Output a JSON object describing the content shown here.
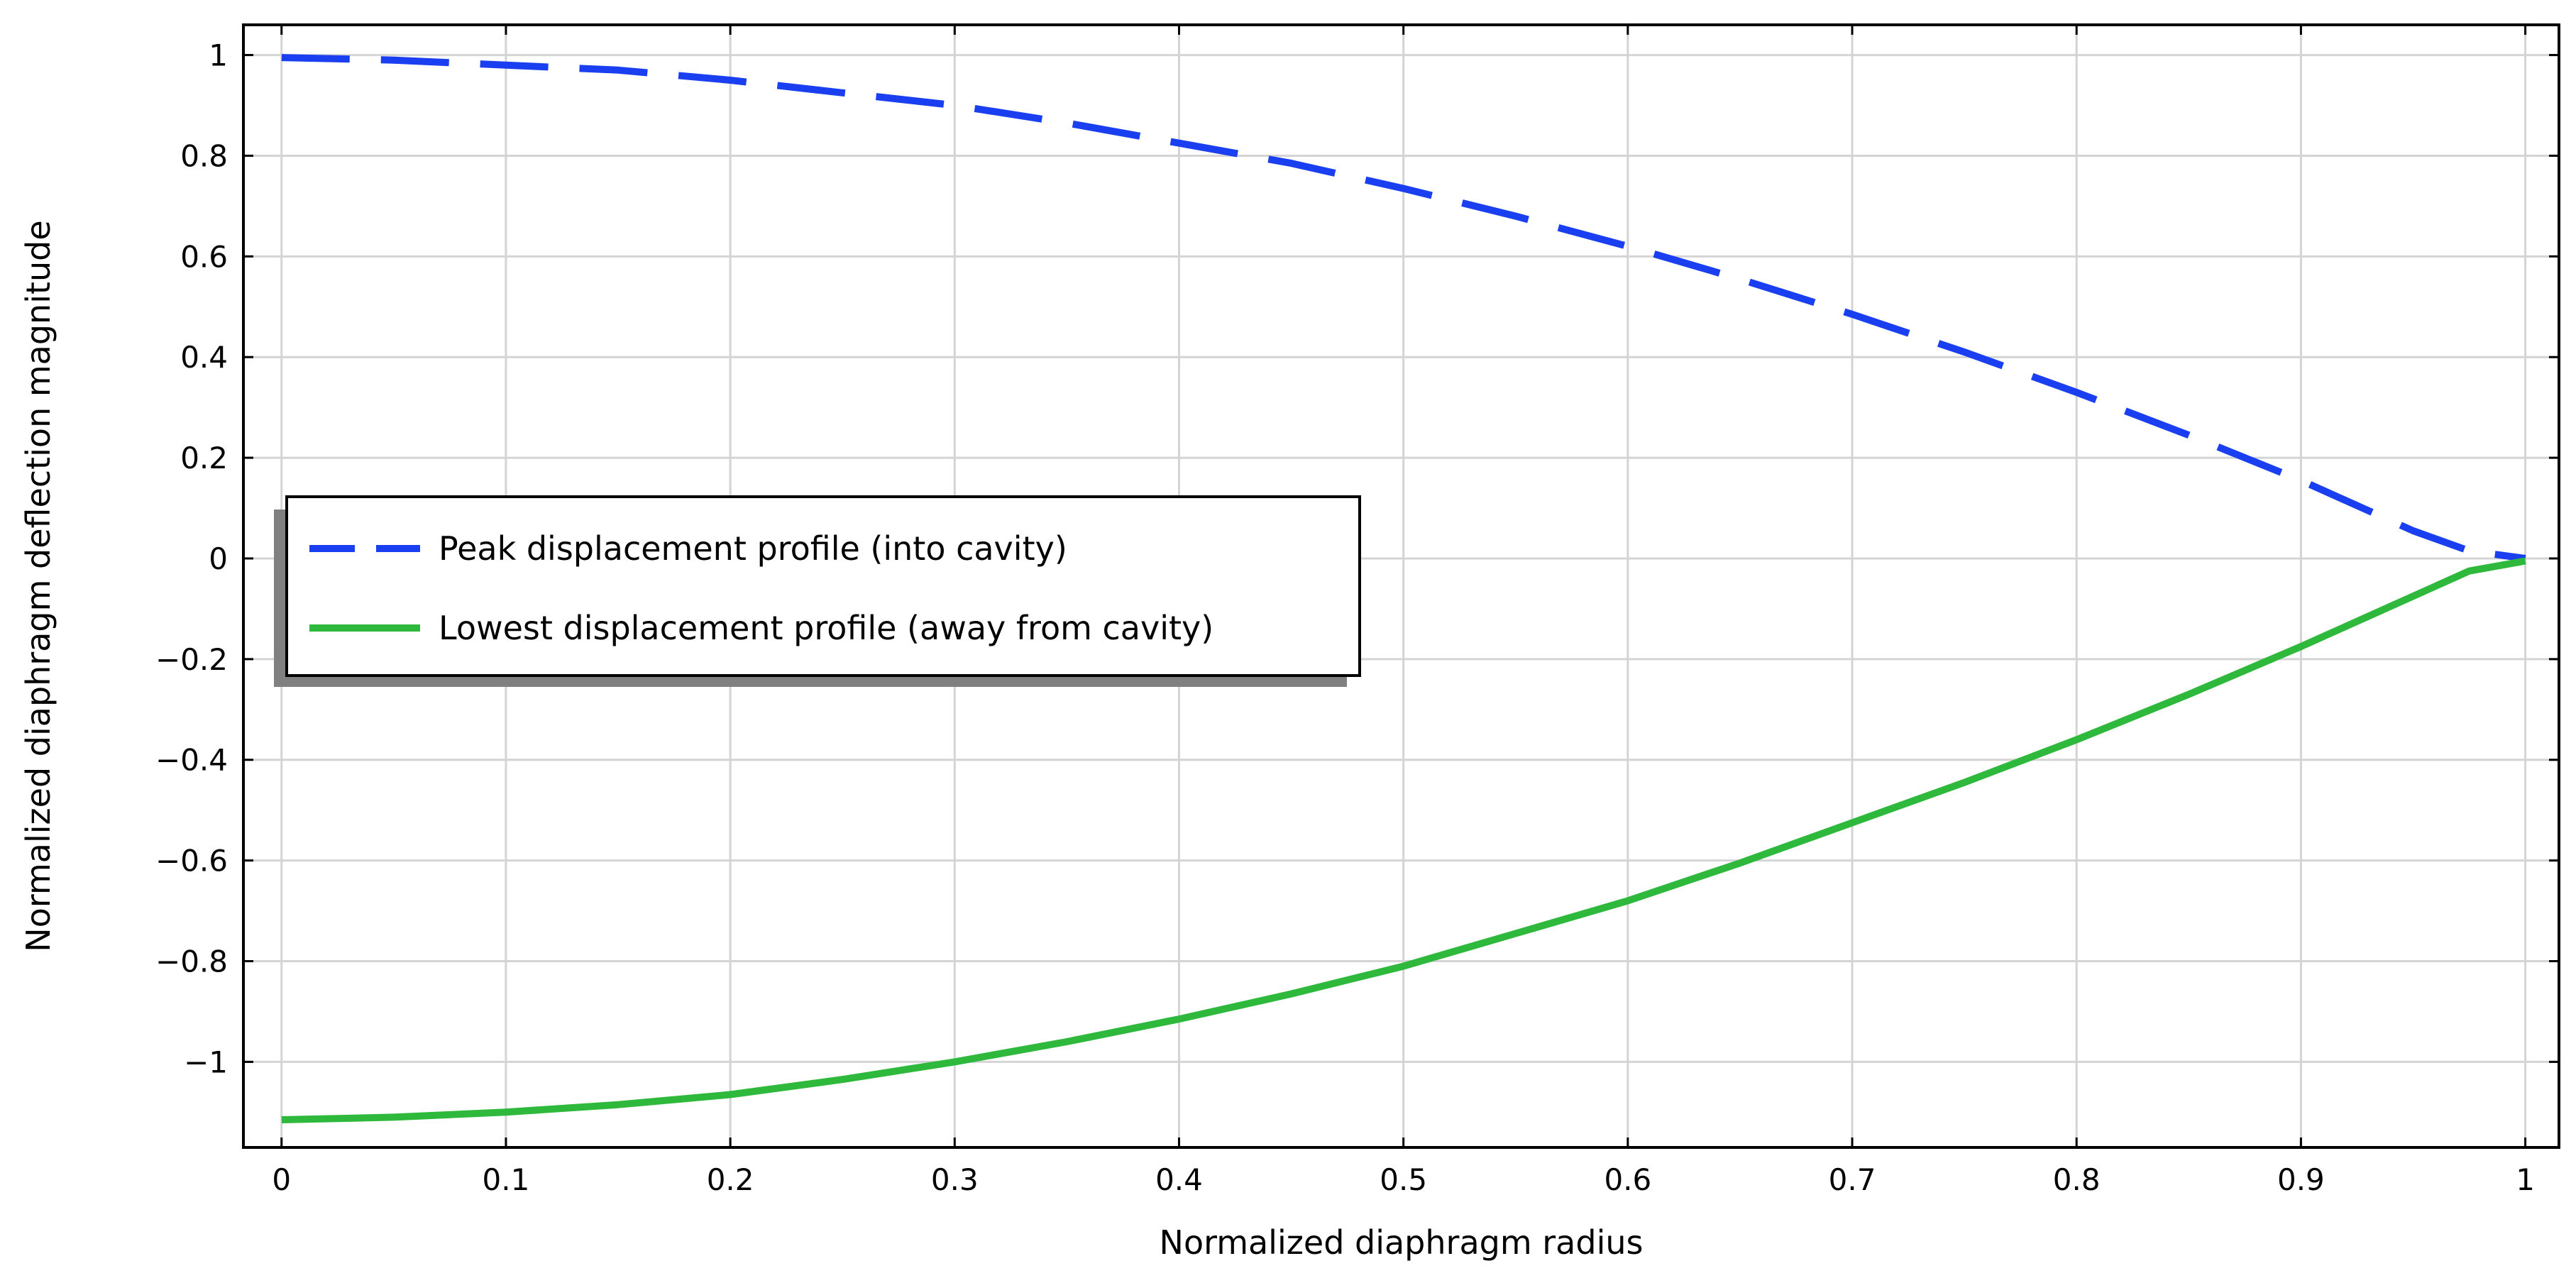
{
  "chart_data": {
    "type": "line",
    "xlabel": "Normalized diaphragm radius",
    "ylabel": "Normalized diaphragm deflection magnitude",
    "xlim": [
      -0.017,
      1.015
    ],
    "ylim": [
      -1.17,
      1.06
    ],
    "xticks": [
      0,
      0.1,
      0.2,
      0.3,
      0.4,
      0.5,
      0.6,
      0.7,
      0.8,
      0.9,
      1
    ],
    "xtick_labels": [
      "0",
      "0.1",
      "0.2",
      "0.3",
      "0.4",
      "0.5",
      "0.6",
      "0.7",
      "0.8",
      "0.9",
      "1"
    ],
    "yticks": [
      1,
      0.8,
      0.6,
      0.4,
      0.2,
      0,
      -0.2,
      -0.4,
      -0.6,
      -0.8,
      -1
    ],
    "ytick_labels": [
      "1",
      "0.8",
      "0.6",
      "0.4",
      "0.2",
      "0",
      "−0.2",
      "−0.4",
      "−0.6",
      "−0.8",
      "−1"
    ],
    "grid": true,
    "legend_position": "center-left",
    "series": [
      {
        "name": "Peak displacement profile (into cavity)",
        "color": "#1a3ff0",
        "style": "dashed",
        "x": [
          0,
          0.05,
          0.1,
          0.15,
          0.2,
          0.25,
          0.3,
          0.35,
          0.4,
          0.45,
          0.5,
          0.55,
          0.6,
          0.65,
          0.7,
          0.75,
          0.8,
          0.85,
          0.9,
          0.95,
          0.975,
          1
        ],
        "y": [
          0.995,
          0.99,
          0.98,
          0.97,
          0.95,
          0.925,
          0.9,
          0.865,
          0.825,
          0.785,
          0.735,
          0.68,
          0.62,
          0.555,
          0.485,
          0.41,
          0.33,
          0.245,
          0.155,
          0.055,
          0.015,
          0
        ]
      },
      {
        "name": "Lowest displacement profile (away from cavity)",
        "color": "#2eb83c",
        "style": "solid",
        "x": [
          0,
          0.05,
          0.1,
          0.15,
          0.2,
          0.25,
          0.3,
          0.35,
          0.4,
          0.45,
          0.5,
          0.55,
          0.6,
          0.65,
          0.7,
          0.75,
          0.8,
          0.85,
          0.9,
          0.95,
          0.975,
          1
        ],
        "y": [
          -1.115,
          -1.11,
          -1.1,
          -1.085,
          -1.065,
          -1.035,
          -1.0,
          -0.96,
          -0.915,
          -0.865,
          -0.81,
          -0.745,
          -0.68,
          -0.605,
          -0.525,
          -0.445,
          -0.36,
          -0.27,
          -0.175,
          -0.075,
          -0.025,
          -0.005
        ]
      }
    ]
  }
}
